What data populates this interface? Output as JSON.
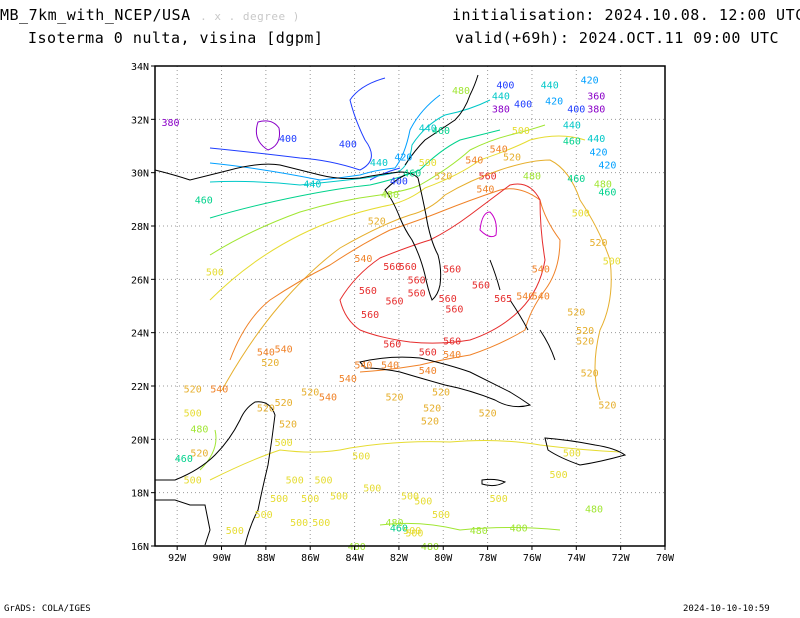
{
  "header": {
    "model": "MB_7km_with_NCEP/USA",
    "unit": ". x . degree )",
    "variable": "Isoterma 0 nulta, visina [dgpm]",
    "init": "initialisation: 2024.10.08. 12:00 UTC",
    "valid": "valid(+69h): 2024.OCT.11 09:00 UTC"
  },
  "footer": {
    "left": "GrADS: COLA/IGES",
    "right": "2024-10-10-10:59"
  },
  "map": {
    "lat_ticks": [
      "34N",
      "32N",
      "30N",
      "28N",
      "26N",
      "24N",
      "22N",
      "20N",
      "18N",
      "16N"
    ],
    "lon_ticks": [
      "92W",
      "90W",
      "88W",
      "86W",
      "84W",
      "82W",
      "80W",
      "78W",
      "76W",
      "74W",
      "72W",
      "70W"
    ],
    "lat_range": [
      16,
      34
    ],
    "lon_range": [
      -93,
      -70
    ],
    "contour_colors": {
      "380": "#8a00c8",
      "400": "#1e3cff",
      "420": "#00a0ff",
      "440": "#00c8c8",
      "460": "#00d28c",
      "480": "#a0e632",
      "500": "#e6dc32",
      "520": "#e6af2d",
      "540": "#f08228",
      "560": "#e62d2d",
      "580": "#c800c8"
    },
    "labels": [
      {
        "t": "380",
        "lon": -92.3,
        "lat": 31.9,
        "c": "380"
      },
      {
        "t": "400",
        "lon": -87.0,
        "lat": 31.3,
        "c": "400"
      },
      {
        "t": "400",
        "lon": -84.3,
        "lat": 31.1,
        "c": "400"
      },
      {
        "t": "440",
        "lon": -82.9,
        "lat": 30.4,
        "c": "440"
      },
      {
        "t": "420",
        "lon": -81.8,
        "lat": 30.6,
        "c": "420"
      },
      {
        "t": "400",
        "lon": -82.0,
        "lat": 29.7,
        "c": "400"
      },
      {
        "t": "460",
        "lon": -81.4,
        "lat": 30.0,
        "c": "460"
      },
      {
        "t": "440",
        "lon": -85.9,
        "lat": 29.6,
        "c": "440"
      },
      {
        "t": "460",
        "lon": -90.8,
        "lat": 29.0,
        "c": "460"
      },
      {
        "t": "480",
        "lon": -82.4,
        "lat": 29.2,
        "c": "480"
      },
      {
        "t": "500",
        "lon": -80.7,
        "lat": 30.4,
        "c": "500"
      },
      {
        "t": "520",
        "lon": -80.0,
        "lat": 29.9,
        "c": "520"
      },
      {
        "t": "540",
        "lon": -78.6,
        "lat": 30.5,
        "c": "540"
      },
      {
        "t": "520",
        "lon": -76.9,
        "lat": 30.6,
        "c": "520"
      },
      {
        "t": "540",
        "lon": -77.5,
        "lat": 30.9,
        "c": "540"
      },
      {
        "t": "500",
        "lon": -76.5,
        "lat": 31.6,
        "c": "500"
      },
      {
        "t": "480",
        "lon": -76.0,
        "lat": 29.9,
        "c": "480"
      },
      {
        "t": "560",
        "lon": -78.0,
        "lat": 29.9,
        "c": "560"
      },
      {
        "t": "540",
        "lon": -78.1,
        "lat": 29.4,
        "c": "540"
      },
      {
        "t": "480",
        "lon": -79.2,
        "lat": 33.1,
        "c": "480"
      },
      {
        "t": "440",
        "lon": -80.7,
        "lat": 31.7,
        "c": "440"
      },
      {
        "t": "460",
        "lon": -80.1,
        "lat": 31.6,
        "c": "460"
      },
      {
        "t": "400",
        "lon": -77.2,
        "lat": 33.3,
        "c": "400"
      },
      {
        "t": "440",
        "lon": -77.4,
        "lat": 32.9,
        "c": "440"
      },
      {
        "t": "380",
        "lon": -77.4,
        "lat": 32.4,
        "c": "380"
      },
      {
        "t": "400",
        "lon": -76.4,
        "lat": 32.6,
        "c": "400"
      },
      {
        "t": "440",
        "lon": -75.2,
        "lat": 33.3,
        "c": "440"
      },
      {
        "t": "420",
        "lon": -73.4,
        "lat": 33.5,
        "c": "420"
      },
      {
        "t": "420",
        "lon": -75.0,
        "lat": 32.7,
        "c": "420"
      },
      {
        "t": "400",
        "lon": -74.0,
        "lat": 32.4,
        "c": "400"
      },
      {
        "t": "380",
        "lon": -73.1,
        "lat": 32.4,
        "c": "380"
      },
      {
        "t": "360",
        "lon": -73.1,
        "lat": 32.9,
        "c": "380"
      },
      {
        "t": "440",
        "lon": -74.2,
        "lat": 31.8,
        "c": "440"
      },
      {
        "t": "460",
        "lon": -74.2,
        "lat": 31.2,
        "c": "460"
      },
      {
        "t": "440",
        "lon": -73.1,
        "lat": 31.3,
        "c": "440"
      },
      {
        "t": "420",
        "lon": -73.0,
        "lat": 30.8,
        "c": "420"
      },
      {
        "t": "420",
        "lon": -72.6,
        "lat": 30.3,
        "c": "420"
      },
      {
        "t": "460",
        "lon": -74.0,
        "lat": 29.8,
        "c": "460"
      },
      {
        "t": "480",
        "lon": -72.8,
        "lat": 29.6,
        "c": "480"
      },
      {
        "t": "460",
        "lon": -72.6,
        "lat": 29.3,
        "c": "460"
      },
      {
        "t": "500",
        "lon": -73.8,
        "lat": 28.5,
        "c": "500"
      },
      {
        "t": "520",
        "lon": -73.0,
        "lat": 27.4,
        "c": "520"
      },
      {
        "t": "500",
        "lon": -72.4,
        "lat": 26.7,
        "c": "500"
      },
      {
        "t": "540",
        "lon": -75.6,
        "lat": 26.4,
        "c": "540"
      },
      {
        "t": "540",
        "lon": -75.6,
        "lat": 25.4,
        "c": "540"
      },
      {
        "t": "520",
        "lon": -74.0,
        "lat": 24.8,
        "c": "520"
      },
      {
        "t": "520",
        "lon": -73.6,
        "lat": 24.1,
        "c": "520"
      },
      {
        "t": "520",
        "lon": -73.6,
        "lat": 23.7,
        "c": "520"
      },
      {
        "t": "520",
        "lon": -73.4,
        "lat": 22.5,
        "c": "520"
      },
      {
        "t": "520",
        "lon": -72.6,
        "lat": 21.3,
        "c": "520"
      },
      {
        "t": "520",
        "lon": -83.0,
        "lat": 28.2,
        "c": "520"
      },
      {
        "t": "540",
        "lon": -83.6,
        "lat": 26.8,
        "c": "540"
      },
      {
        "t": "500",
        "lon": -90.3,
        "lat": 26.3,
        "c": "500"
      },
      {
        "t": "560",
        "lon": -82.3,
        "lat": 26.5,
        "c": "560"
      },
      {
        "t": "560",
        "lon": -81.6,
        "lat": 26.5,
        "c": "560"
      },
      {
        "t": "560",
        "lon": -81.2,
        "lat": 26.0,
        "c": "560"
      },
      {
        "t": "560",
        "lon": -79.6,
        "lat": 26.4,
        "c": "560"
      },
      {
        "t": "560",
        "lon": -83.4,
        "lat": 25.6,
        "c": "560"
      },
      {
        "t": "560",
        "lon": -81.2,
        "lat": 25.5,
        "c": "560"
      },
      {
        "t": "560",
        "lon": -78.3,
        "lat": 25.8,
        "c": "560"
      },
      {
        "t": "560",
        "lon": -79.8,
        "lat": 25.3,
        "c": "560"
      },
      {
        "t": "560",
        "lon": -82.2,
        "lat": 25.2,
        "c": "560"
      },
      {
        "t": "560",
        "lon": -79.5,
        "lat": 24.9,
        "c": "560"
      },
      {
        "t": "565",
        "lon": -77.3,
        "lat": 25.3,
        "c": "560"
      },
      {
        "t": "540",
        "lon": -76.3,
        "lat": 25.4,
        "c": "540"
      },
      {
        "t": "560",
        "lon": -83.3,
        "lat": 24.7,
        "c": "560"
      },
      {
        "t": "560",
        "lon": -82.3,
        "lat": 23.6,
        "c": "560"
      },
      {
        "t": "560",
        "lon": -80.7,
        "lat": 23.3,
        "c": "560"
      },
      {
        "t": "560",
        "lon": -79.6,
        "lat": 23.7,
        "c": "560"
      },
      {
        "t": "540",
        "lon": -79.6,
        "lat": 23.2,
        "c": "540"
      },
      {
        "t": "540",
        "lon": -88.0,
        "lat": 23.3,
        "c": "540"
      },
      {
        "t": "540",
        "lon": -87.2,
        "lat": 23.4,
        "c": "540"
      },
      {
        "t": "520",
        "lon": -87.8,
        "lat": 22.9,
        "c": "520"
      },
      {
        "t": "540",
        "lon": -83.6,
        "lat": 22.8,
        "c": "540"
      },
      {
        "t": "540",
        "lon": -84.3,
        "lat": 22.3,
        "c": "540"
      },
      {
        "t": "540",
        "lon": -82.4,
        "lat": 22.8,
        "c": "540"
      },
      {
        "t": "540",
        "lon": -80.7,
        "lat": 22.6,
        "c": "540"
      },
      {
        "t": "520",
        "lon": -91.3,
        "lat": 21.9,
        "c": "520"
      },
      {
        "t": "540",
        "lon": -90.1,
        "lat": 21.9,
        "c": "540"
      },
      {
        "t": "520",
        "lon": -86.0,
        "lat": 21.8,
        "c": "520"
      },
      {
        "t": "540",
        "lon": -85.2,
        "lat": 21.6,
        "c": "540"
      },
      {
        "t": "520",
        "lon": -82.2,
        "lat": 21.6,
        "c": "520"
      },
      {
        "t": "520",
        "lon": -80.1,
        "lat": 21.8,
        "c": "520"
      },
      {
        "t": "520",
        "lon": -80.5,
        "lat": 21.2,
        "c": "520"
      },
      {
        "t": "520",
        "lon": -87.2,
        "lat": 21.4,
        "c": "520"
      },
      {
        "t": "520",
        "lon": -88.0,
        "lat": 21.2,
        "c": "520"
      },
      {
        "t": "500",
        "lon": -91.3,
        "lat": 21.0,
        "c": "500"
      },
      {
        "t": "520",
        "lon": -87.0,
        "lat": 20.6,
        "c": "520"
      },
      {
        "t": "520",
        "lon": -80.6,
        "lat": 20.7,
        "c": "520"
      },
      {
        "t": "520",
        "lon": -78.0,
        "lat": 21.0,
        "c": "520"
      },
      {
        "t": "480",
        "lon": -91.0,
        "lat": 20.4,
        "c": "480"
      },
      {
        "t": "500",
        "lon": -87.2,
        "lat": 19.9,
        "c": "500"
      },
      {
        "t": "520",
        "lon": -91.0,
        "lat": 19.5,
        "c": "520"
      },
      {
        "t": "460",
        "lon": -91.7,
        "lat": 19.3,
        "c": "460"
      },
      {
        "t": "500",
        "lon": -83.7,
        "lat": 19.4,
        "c": "500"
      },
      {
        "t": "500",
        "lon": -74.2,
        "lat": 19.5,
        "c": "500"
      },
      {
        "t": "500",
        "lon": -74.8,
        "lat": 18.7,
        "c": "500"
      },
      {
        "t": "500",
        "lon": -91.3,
        "lat": 18.5,
        "c": "500"
      },
      {
        "t": "500",
        "lon": -86.7,
        "lat": 18.5,
        "c": "500"
      },
      {
        "t": "500",
        "lon": -85.4,
        "lat": 18.5,
        "c": "500"
      },
      {
        "t": "500",
        "lon": -83.2,
        "lat": 18.2,
        "c": "500"
      },
      {
        "t": "500",
        "lon": -87.4,
        "lat": 17.8,
        "c": "500"
      },
      {
        "t": "500",
        "lon": -86.0,
        "lat": 17.8,
        "c": "500"
      },
      {
        "t": "500",
        "lon": -84.7,
        "lat": 17.9,
        "c": "500"
      },
      {
        "t": "500",
        "lon": -81.5,
        "lat": 17.9,
        "c": "500"
      },
      {
        "t": "500",
        "lon": -80.9,
        "lat": 17.7,
        "c": "500"
      },
      {
        "t": "500",
        "lon": -77.5,
        "lat": 17.8,
        "c": "500"
      },
      {
        "t": "500",
        "lon": -88.1,
        "lat": 17.2,
        "c": "500"
      },
      {
        "t": "500",
        "lon": -86.5,
        "lat": 16.9,
        "c": "500"
      },
      {
        "t": "500",
        "lon": -85.5,
        "lat": 16.9,
        "c": "500"
      },
      {
        "t": "500",
        "lon": -80.1,
        "lat": 17.2,
        "c": "500"
      },
      {
        "t": "500",
        "lon": -81.4,
        "lat": 16.6,
        "c": "500"
      },
      {
        "t": "500",
        "lon": -89.4,
        "lat": 16.6,
        "c": "500"
      },
      {
        "t": "480",
        "lon": -82.2,
        "lat": 16.9,
        "c": "480"
      },
      {
        "t": "460",
        "lon": -82.0,
        "lat": 16.7,
        "c": "460"
      },
      {
        "t": "480",
        "lon": -78.4,
        "lat": 16.6,
        "c": "480"
      },
      {
        "t": "480",
        "lon": -76.6,
        "lat": 16.7,
        "c": "480"
      },
      {
        "t": "480",
        "lon": -73.2,
        "lat": 17.4,
        "c": "480"
      },
      {
        "t": "480",
        "lon": -83.9,
        "lat": 16.0,
        "c": "480"
      },
      {
        "t": "480",
        "lon": -80.6,
        "lat": 16.0,
        "c": "480"
      },
      {
        "t": "500",
        "lon": -81.3,
        "lat": 16.5,
        "c": "500"
      }
    ]
  }
}
